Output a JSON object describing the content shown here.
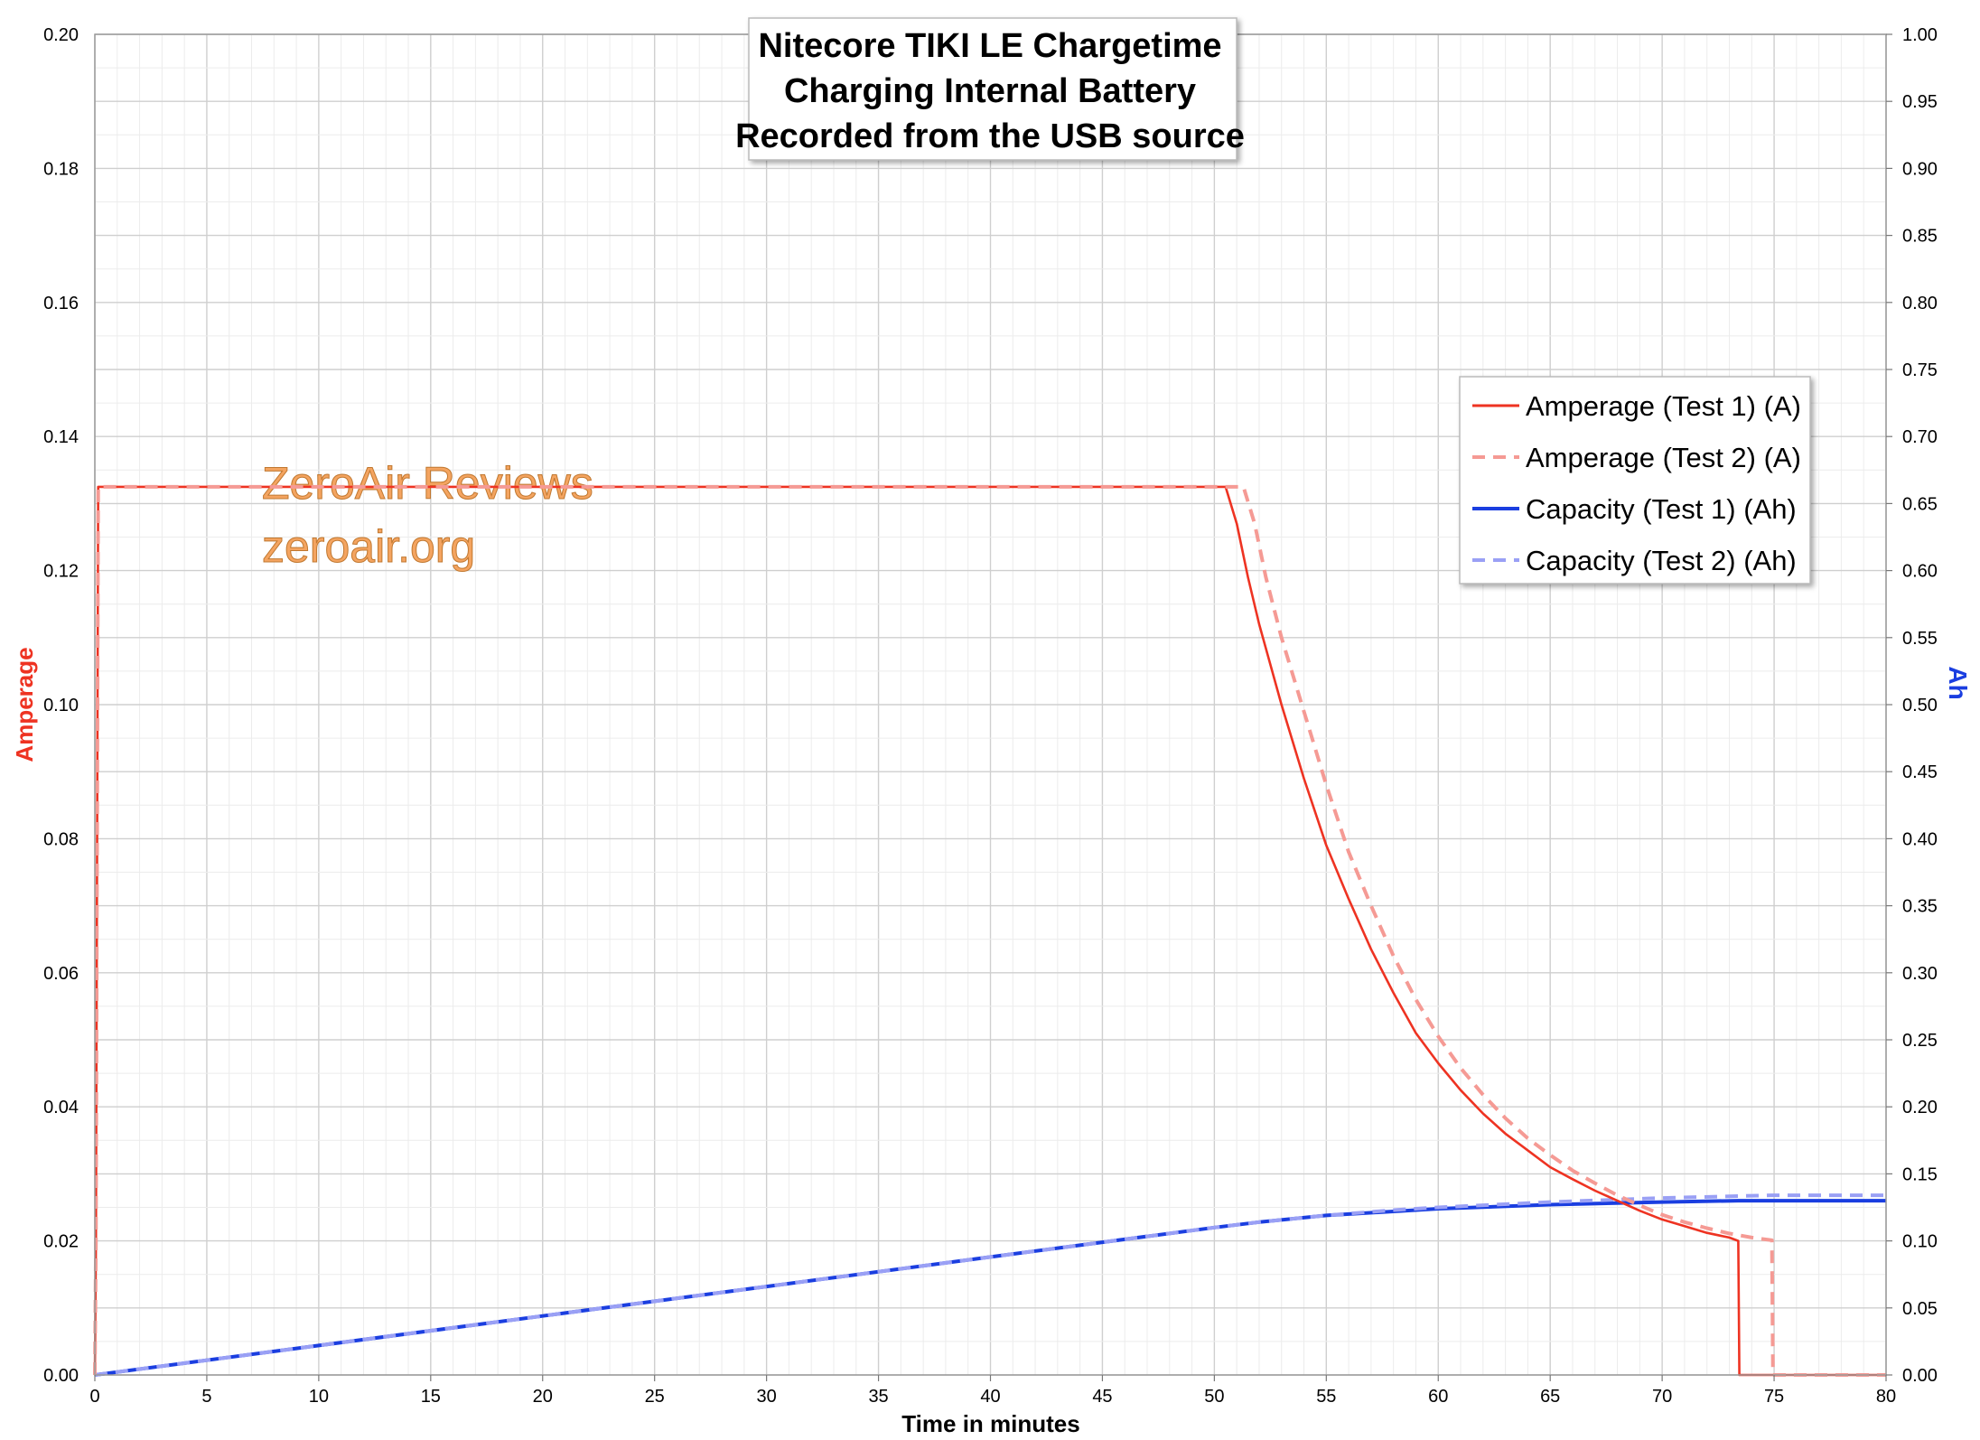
{
  "chart_data": {
    "type": "line",
    "title_lines": [
      "Nitecore TIKI LE Chargetime",
      "Charging Internal Battery",
      "Recorded from the USB source"
    ],
    "xlabel": "Time in minutes",
    "ylabel_left": "Amperage",
    "ylabel_right": "Ah",
    "xlim": [
      0,
      80
    ],
    "ylim_left": [
      0,
      0.2
    ],
    "ylim_right": [
      0,
      1.0
    ],
    "x_ticks": [
      "0",
      "5",
      "10",
      "15",
      "20",
      "25",
      "30",
      "35",
      "40",
      "45",
      "50",
      "55",
      "60",
      "65",
      "70",
      "75",
      "80"
    ],
    "y_left_ticks": [
      "0.00",
      "0.02",
      "0.04",
      "0.06",
      "0.08",
      "0.10",
      "0.12",
      "0.14",
      "0.16",
      "0.18",
      "0.20"
    ],
    "y_right_ticks": [
      "0.00",
      "0.05",
      "0.10",
      "0.15",
      "0.20",
      "0.25",
      "0.30",
      "0.35",
      "0.40",
      "0.45",
      "0.50",
      "0.55",
      "0.60",
      "0.65",
      "0.70",
      "0.75",
      "0.80",
      "0.85",
      "0.90",
      "0.95",
      "1.00"
    ],
    "grid": true,
    "legend_position": "top-right",
    "watermark": [
      "ZeroAir Reviews",
      "zeroair.org"
    ],
    "colors": {
      "amp1": "#ee3322",
      "amp2": "#f59a94",
      "cap1": "#1a3ee0",
      "cap2": "#9aa0f5",
      "ylabel_left": "#ee3322",
      "ylabel_right": "#1a3ee0"
    },
    "series": [
      {
        "name": "Amperage (Test 1) (A)",
        "axis": "left",
        "style": "solid",
        "x": [
          0,
          0.05,
          0.15,
          50.5,
          51.0,
          51.5,
          52,
          53,
          54,
          55,
          56,
          57,
          58,
          59,
          60,
          61,
          62,
          63,
          64,
          65,
          66,
          67,
          68,
          69,
          70,
          71,
          72,
          73,
          73.4,
          73.45,
          80
        ],
        "y": [
          0,
          0.02,
          0.1325,
          0.1325,
          0.127,
          0.119,
          0.112,
          0.1,
          0.089,
          0.079,
          0.071,
          0.0635,
          0.057,
          0.051,
          0.0465,
          0.0425,
          0.039,
          0.036,
          0.0335,
          0.031,
          0.0292,
          0.0275,
          0.026,
          0.0245,
          0.0232,
          0.0222,
          0.0212,
          0.0205,
          0.02,
          0,
          0
        ]
      },
      {
        "name": "Amperage (Test 2) (A)",
        "axis": "left",
        "style": "dashed",
        "x": [
          0,
          0.05,
          0.15,
          51.3,
          51.8,
          52.3,
          53,
          54,
          55,
          56,
          57,
          58,
          59,
          60,
          61,
          62,
          63,
          64,
          65,
          66,
          67,
          68,
          69,
          70,
          71,
          72,
          73,
          74,
          74.9,
          74.95,
          80
        ],
        "y": [
          0,
          0.02,
          0.1325,
          0.1325,
          0.127,
          0.119,
          0.11,
          0.099,
          0.088,
          0.078,
          0.07,
          0.0625,
          0.056,
          0.0505,
          0.0458,
          0.0418,
          0.0383,
          0.0353,
          0.0328,
          0.0305,
          0.0286,
          0.0268,
          0.0253,
          0.0239,
          0.0228,
          0.0219,
          0.0211,
          0.0205,
          0.0201,
          0,
          0
        ]
      },
      {
        "name": "Capacity (Test 1) (Ah)",
        "axis": "right",
        "style": "solid",
        "x": [
          0,
          10,
          20,
          30,
          40,
          45,
          50,
          52,
          55,
          58,
          60,
          65,
          70,
          73.4,
          80
        ],
        "y": [
          0,
          0.022,
          0.044,
          0.066,
          0.088,
          0.099,
          0.11,
          0.114,
          0.119,
          0.122,
          0.124,
          0.127,
          0.129,
          0.13,
          0.13
        ]
      },
      {
        "name": "Capacity (Test 2) (Ah)",
        "axis": "right",
        "style": "dashed",
        "x": [
          0,
          10,
          20,
          30,
          40,
          45,
          50,
          52,
          55,
          58,
          60,
          65,
          70,
          74.9,
          80
        ],
        "y": [
          0,
          0.022,
          0.044,
          0.066,
          0.088,
          0.099,
          0.11,
          0.114,
          0.119,
          0.123,
          0.125,
          0.129,
          0.132,
          0.134,
          0.134
        ]
      }
    ]
  }
}
